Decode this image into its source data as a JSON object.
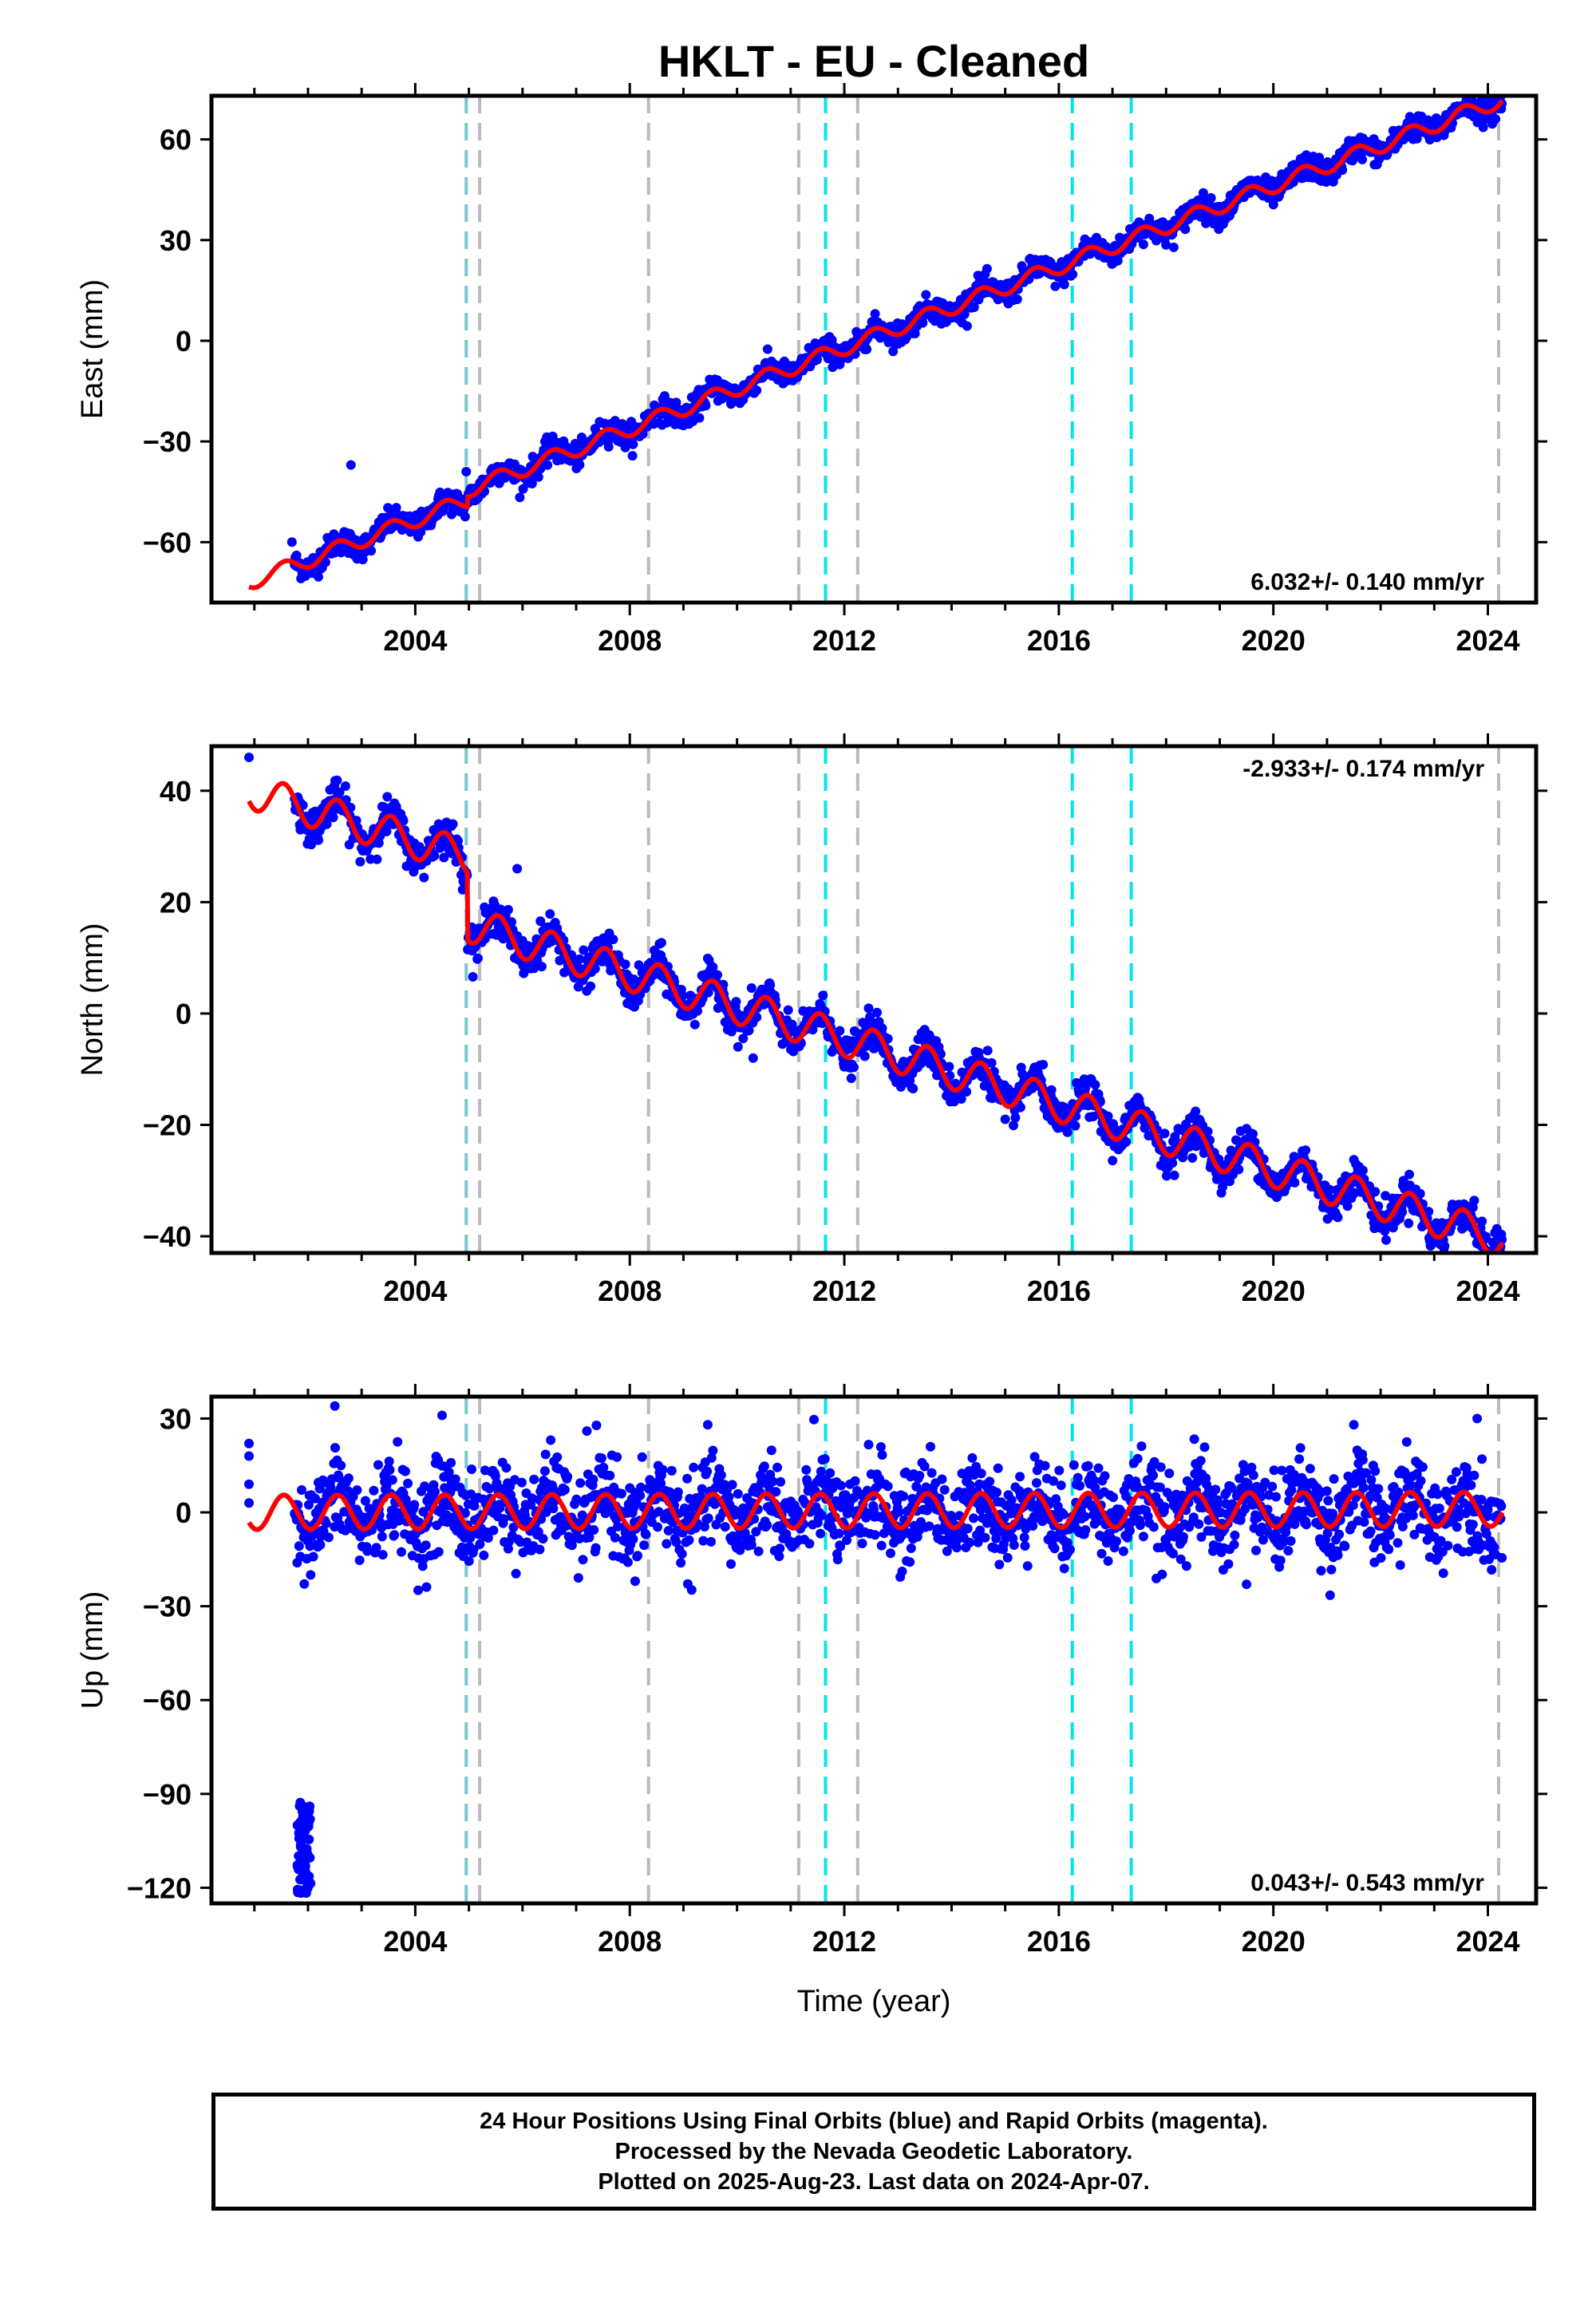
{
  "title": "HKLT  - EU - Cleaned",
  "xlabel": "Time (year)",
  "footer": {
    "lines": [
      "24 Hour Positions Using Final Orbits (blue) and Rapid Orbits (magenta).",
      "Processed by the Nevada Geodetic Laboratory.",
      "Plotted on 2025-Aug-23. Last data on 2024-Apr-07."
    ]
  },
  "colors": {
    "points": "#0000ff",
    "model": "#ff0000",
    "eq_lines": "#00e5ee",
    "equipment_lines": "#bbbbbb",
    "mixed_line": "#77c7cc"
  },
  "chart_data": [
    {
      "type": "scatter",
      "component": "East",
      "ylabel": "East (mm)",
      "ylim": [
        -78,
        73
      ],
      "yticks": [
        -60,
        -30,
        0,
        30,
        60
      ],
      "xlim": [
        2000.2,
        2024.9
      ],
      "xticks": [
        2004,
        2008,
        2012,
        2016,
        2020,
        2024
      ],
      "rate_label": "6.032+/- 0.140 mm/yr",
      "rate_position": "bottom-right",
      "trend": {
        "t0": 2000.9,
        "y0": -72,
        "rate": 6.032
      },
      "seasonal_amplitude": 2.3,
      "steps": [
        {
          "year": 2004.97,
          "offset": 3
        }
      ],
      "scatter_sd": 1.8,
      "outliers": [
        [
          2002.8,
          -37
        ],
        [
          2001.7,
          -60
        ],
        [
          2004.95,
          -39
        ]
      ]
    },
    {
      "type": "scatter",
      "component": "North",
      "ylabel": "North (mm)",
      "ylim": [
        -43,
        48
      ],
      "yticks": [
        -40,
        -20,
        0,
        20,
        40
      ],
      "xlim": [
        2000.2,
        2024.9
      ],
      "xticks": [
        2004,
        2008,
        2012,
        2016,
        2020,
        2024
      ],
      "rate_label": "-2.933+/- 0.174 mm/yr",
      "rate_position": "top-right",
      "trend": {
        "t0": 2000.9,
        "y0": 40,
        "rate": -2.933
      },
      "seasonal_amplitude": 3.2,
      "steps": [
        {
          "year": 2004.97,
          "offset": -12
        }
      ],
      "scatter_sd": 1.6,
      "outliers": [
        [
          2000.9,
          46
        ],
        [
          2010.3,
          -8
        ],
        [
          2015.0,
          -19
        ],
        [
          2024.2,
          -42
        ],
        [
          2005.9,
          26
        ],
        [
          2013.4,
          -8
        ]
      ]
    },
    {
      "type": "scatter",
      "component": "Up",
      "ylabel": "Up (mm)",
      "ylim": [
        -125,
        37
      ],
      "yticks": [
        -120,
        -90,
        -60,
        -30,
        0,
        30
      ],
      "xlim": [
        2000.2,
        2024.9
      ],
      "xticks": [
        2004,
        2008,
        2012,
        2016,
        2020,
        2024
      ],
      "rate_label": "0.043+/- 0.543 mm/yr",
      "rate_position": "bottom-right",
      "trend": {
        "t0": 2000.9,
        "y0": 0,
        "rate": 0.043
      },
      "seasonal_amplitude": 5.5,
      "steps": [],
      "scatter_sd": 7,
      "outliers": [
        [
          2000.9,
          22
        ],
        [
          2000.9,
          18
        ],
        [
          2000.9,
          9
        ],
        [
          2000.9,
          3
        ],
        [
          2002.5,
          34
        ],
        [
          2004.5,
          31
        ],
        [
          2007.2,
          26
        ],
        [
          2021.5,
          28
        ],
        [
          2023.8,
          30
        ],
        [
          2019.5,
          -23
        ],
        [
          2008.1,
          -22
        ]
      ],
      "outlier_cluster": {
        "x_range": [
          2001.8,
          2002.05
        ],
        "y_range": [
          -122,
          -92
        ]
      }
    }
  ],
  "vertical_lines": {
    "equipment": [
      2005.2,
      2008.35,
      2011.15,
      2012.25,
      2024.2
    ],
    "earthquake": [
      2011.65,
      2016.25,
      2017.35
    ],
    "mixed": [
      2004.95
    ]
  }
}
